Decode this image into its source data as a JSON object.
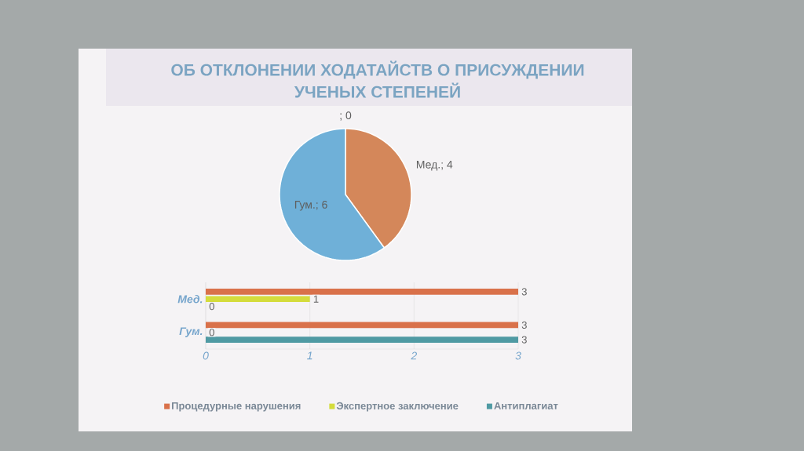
{
  "chart_data": [
    {
      "type": "pie",
      "title": "ОБ ОТКЛОНЕНИИ ХОДАТАЙСТВ О ПРИСУЖДЕНИИ УЧЕНЫХ СТЕПЕНЕЙ",
      "categories": [
        null,
        "Мед.",
        "Гум."
      ],
      "values": [
        0,
        4,
        6
      ],
      "value_labels": [
        "; 0",
        "; 4",
        "; 6"
      ],
      "colors": [
        "#a5a5a5",
        "#d4875a",
        "#6fb0d8"
      ]
    },
    {
      "type": "bar",
      "orientation": "horizontal",
      "categories": [
        "Мед.",
        "Гум."
      ],
      "series": [
        {
          "name": "Процедурные нарушения",
          "color": "#d9714a",
          "values": [
            3,
            3
          ]
        },
        {
          "name": "Экспертное заключение",
          "color": "#d4dc3c",
          "values": [
            1,
            0
          ]
        },
        {
          "name": "Антиплагиат",
          "color": "#4f9aa3",
          "values": [
            0,
            3
          ]
        }
      ],
      "xlim": [
        0,
        3
      ],
      "xticks": [
        0,
        1,
        2,
        3
      ],
      "grid": "x",
      "legend": "bottom",
      "data_labels": true
    }
  ]
}
